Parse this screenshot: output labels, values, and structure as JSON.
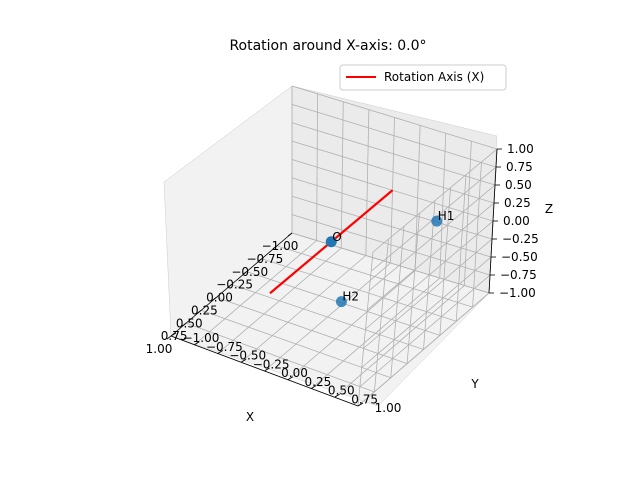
{
  "chart_data": {
    "type": "scatter",
    "projection": "3d",
    "title": "Rotation around X-axis: 0.0°",
    "xlabel": "X",
    "ylabel": "Y",
    "zlabel": "Z",
    "xlim": [
      -1,
      1
    ],
    "ylim": [
      -1,
      1
    ],
    "zlim": [
      -1,
      1
    ],
    "grid": true,
    "legend_position": "top-right",
    "x_ticks": [
      "−1.00",
      "−0.75",
      "−0.50",
      "−0.25",
      "0.00",
      "0.25",
      "0.50",
      "0.75",
      "1.00"
    ],
    "y_ticks": [
      "−1.00",
      "−0.75",
      "−0.50",
      "−0.25",
      "0.00",
      "0.25",
      "0.50",
      "0.75",
      "1.00"
    ],
    "z_ticks": [
      "−1.00",
      "−0.75",
      "−0.50",
      "−0.25",
      "0.00",
      "0.25",
      "0.50",
      "0.75",
      "1.00"
    ],
    "points": [
      {
        "label": "O",
        "x": 0.0,
        "y": 0.0,
        "z": 0.0
      },
      {
        "label": "H1",
        "x": -0.76,
        "y": 0.59,
        "z": 0.0
      },
      {
        "label": "H2",
        "x": 0.76,
        "y": 0.59,
        "z": 0.0
      }
    ],
    "lines": [
      {
        "name": "Rotation Axis (X)",
        "x": [
          -1,
          1
        ],
        "y": [
          0.0,
          0.0
        ],
        "z": [
          0.0,
          0.0
        ],
        "color": "#ff0000"
      }
    ],
    "colors": {
      "points": "#1f77b4",
      "axis_line": "#ff0000"
    }
  }
}
